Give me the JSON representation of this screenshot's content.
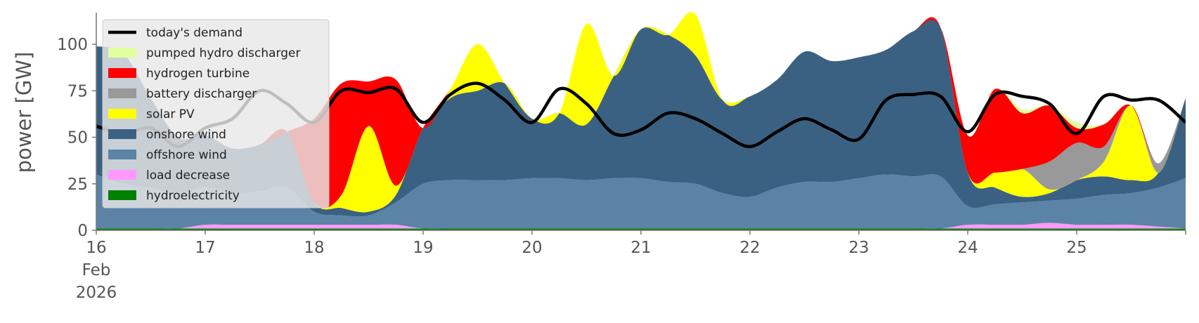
{
  "chart_data": {
    "type": "area",
    "title": "",
    "xlabel": "",
    "ylabel": "power [GW]",
    "xlim": [
      "2026-02-16 00:00",
      "2026-02-25 24:00"
    ],
    "ylim": [
      0,
      117
    ],
    "y_ticks": [
      0,
      25,
      50,
      75,
      100
    ],
    "x_ticks": [
      {
        "date": "2026-02-16",
        "lines": [
          "16",
          "Feb",
          "2026"
        ]
      },
      {
        "date": "2026-02-17",
        "lines": [
          "17"
        ]
      },
      {
        "date": "2026-02-18",
        "lines": [
          "18"
        ]
      },
      {
        "date": "2026-02-19",
        "lines": [
          "19"
        ]
      },
      {
        "date": "2026-02-20",
        "lines": [
          "20"
        ]
      },
      {
        "date": "2026-02-21",
        "lines": [
          "21"
        ]
      },
      {
        "date": "2026-02-22",
        "lines": [
          "22"
        ]
      },
      {
        "date": "2026-02-23",
        "lines": [
          "23"
        ]
      },
      {
        "date": "2026-02-24",
        "lines": [
          "24"
        ]
      },
      {
        "date": "2026-02-25",
        "lines": [
          "25"
        ]
      }
    ],
    "grid": false,
    "legend_position": "top-left",
    "legend": [
      {
        "name": "today's demand",
        "kind": "line",
        "color": "#000000"
      },
      {
        "name": "pumped hydro discharger",
        "kind": "patch",
        "color": "#e0ffa0"
      },
      {
        "name": "hydrogen turbine",
        "kind": "patch",
        "color": "#ff0000"
      },
      {
        "name": "battery discharger",
        "kind": "patch",
        "color": "#999999"
      },
      {
        "name": "solar PV",
        "kind": "patch",
        "color": "#ffff00"
      },
      {
        "name": "onshore wind",
        "kind": "patch",
        "color": "#3b6182"
      },
      {
        "name": "offshore wind",
        "kind": "patch",
        "color": "#5b83a6"
      },
      {
        "name": "load decrease",
        "kind": "patch",
        "color": "#ff99ff"
      },
      {
        "name": "hydroelectricity",
        "kind": "patch",
        "color": "#008000"
      }
    ],
    "x_days": [
      0,
      0.25,
      0.5,
      0.75,
      1,
      1.25,
      1.5,
      1.75,
      2,
      2.25,
      2.5,
      2.75,
      3,
      3.25,
      3.5,
      3.75,
      4,
      4.25,
      4.5,
      4.75,
      5,
      5.25,
      5.5,
      5.75,
      6,
      6.25,
      6.5,
      6.75,
      7,
      7.25,
      7.5,
      7.75,
      8,
      8.25,
      8.5,
      8.75,
      9,
      9.25,
      9.5,
      9.75,
      10
    ],
    "stack_order": [
      "hydroelectricity",
      "load decrease",
      "offshore wind",
      "onshore wind",
      "solar PV",
      "battery discharger",
      "hydrogen turbine",
      "pumped hydro discharger"
    ],
    "series": [
      {
        "name": "hydroelectricity",
        "color": "#008000",
        "values": [
          1,
          1,
          1,
          1,
          1,
          1,
          1,
          1,
          1,
          1,
          1,
          1,
          1,
          1,
          1,
          1,
          1,
          1,
          1,
          1,
          1,
          1,
          1,
          1,
          1,
          1,
          1,
          1,
          1,
          1,
          1,
          1,
          1,
          1,
          1,
          1,
          1,
          1,
          1,
          1,
          1
        ]
      },
      {
        "name": "load decrease",
        "color": "#ff99ff",
        "values": [
          0,
          0,
          0,
          0,
          2,
          2,
          2,
          2,
          2,
          2,
          2,
          2,
          0,
          0,
          0,
          0,
          0,
          0,
          0,
          0,
          0,
          0,
          0,
          0,
          0,
          0,
          0,
          0,
          0,
          0,
          0,
          0,
          2,
          2,
          2,
          3,
          2,
          2,
          2,
          1,
          0
        ]
      },
      {
        "name": "offshore wind",
        "color": "#5b83a6",
        "values": [
          29,
          24,
          22,
          19,
          20,
          17,
          18,
          20,
          7,
          5,
          5,
          12,
          24,
          26,
          26,
          26,
          27,
          27,
          26,
          27,
          27,
          25,
          24,
          19,
          17,
          22,
          25,
          25,
          27,
          29,
          28,
          28,
          10,
          11,
          12,
          12,
          14,
          16,
          17,
          21,
          27
        ]
      },
      {
        "name": "onshore wind",
        "color": "#3b6182",
        "values": [
          69,
          70,
          48,
          30,
          28,
          24,
          25,
          30,
          5,
          4,
          2,
          4,
          30,
          44,
          48,
          52,
          32,
          35,
          30,
          55,
          80,
          79,
          69,
          50,
          54,
          58,
          70,
          65,
          65,
          67,
          78,
          80,
          18,
          9,
          3,
          4,
          10,
          10,
          7,
          8,
          43
        ]
      },
      {
        "name": "solar PV",
        "color": "#ffff00",
        "values": [
          0,
          0,
          0,
          0,
          0,
          0,
          0,
          0,
          0,
          7,
          46,
          5,
          0,
          5,
          25,
          0,
          0,
          0,
          54,
          0,
          0,
          0,
          22,
          0,
          0,
          0,
          0,
          0,
          0,
          0,
          0,
          0,
          0,
          8,
          15,
          2,
          0,
          8,
          40,
          0,
          0
        ]
      },
      {
        "name": "battery discharger",
        "color": "#999999",
        "values": [
          0,
          0,
          0,
          0,
          0,
          0,
          0,
          0,
          0,
          0,
          0,
          0,
          0,
          0,
          0,
          0,
          0,
          0,
          0,
          0,
          0,
          0,
          0,
          0,
          0,
          0,
          0,
          0,
          0,
          0,
          0,
          0,
          0,
          0,
          0,
          15,
          20,
          8,
          0,
          5,
          0
        ]
      },
      {
        "name": "hydrogen turbine",
        "color": "#ff0000",
        "values": [
          0,
          0,
          0,
          0,
          0,
          0,
          0,
          0,
          45,
          60,
          24,
          57,
          0,
          0,
          0,
          0,
          0,
          0,
          0,
          0,
          0,
          0,
          0,
          0,
          0,
          0,
          0,
          0,
          0,
          0,
          0,
          0,
          20,
          45,
          30,
          30,
          8,
          12,
          0,
          0,
          0
        ]
      },
      {
        "name": "pumped hydro discharger",
        "color": "#e0ffa0",
        "values": [
          0,
          0,
          0,
          0,
          0,
          0,
          0,
          0,
          0,
          0,
          0,
          0,
          0,
          0,
          0,
          0,
          0,
          0,
          0,
          0,
          0,
          0,
          0,
          0,
          0,
          0,
          0,
          0,
          0,
          0,
          0,
          0,
          0,
          0,
          2,
          0,
          3,
          0,
          0,
          0,
          0
        ]
      },
      {
        "name": "today's demand",
        "color": "#000000",
        "type": "line",
        "values": [
          56,
          52,
          55,
          45,
          55,
          60,
          75,
          68,
          58,
          75,
          74,
          76,
          58,
          73,
          79,
          70,
          58,
          76,
          68,
          52,
          54,
          63,
          60,
          52,
          45,
          53,
          60,
          54,
          49,
          70,
          73,
          72,
          53,
          73,
          72,
          68,
          52,
          72,
          70,
          70,
          58
        ]
      }
    ]
  }
}
